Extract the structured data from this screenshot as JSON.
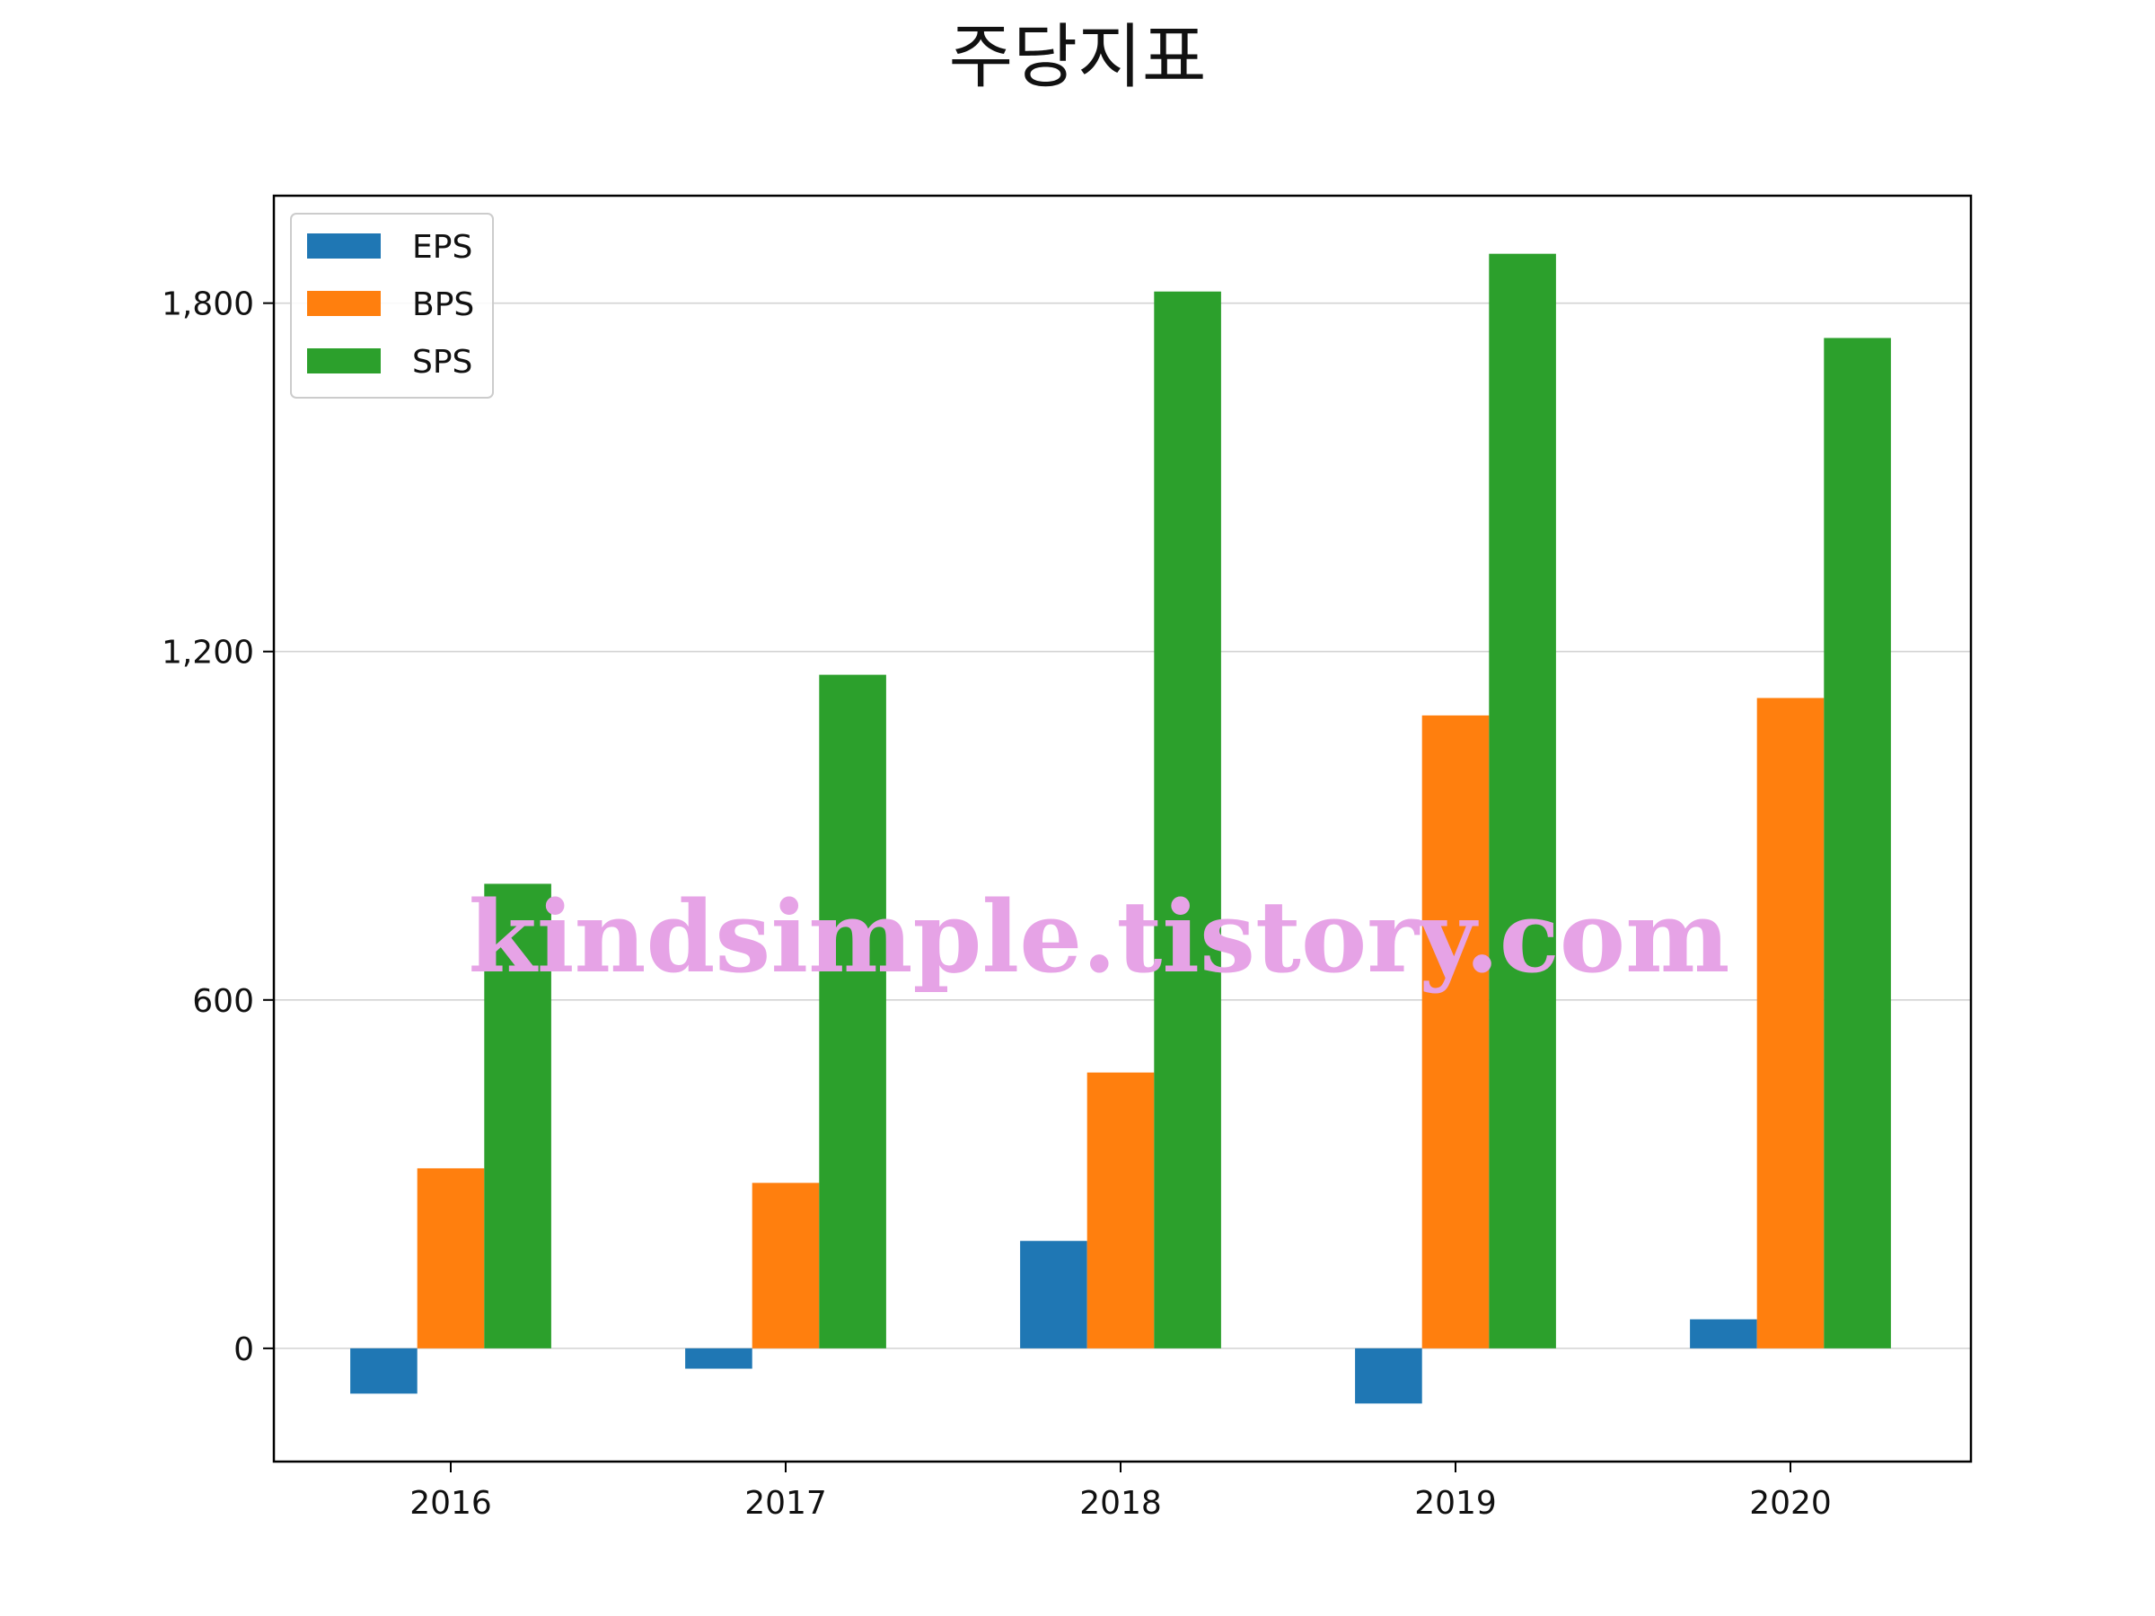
{
  "chart_data": {
    "type": "bar",
    "title": "주당지표",
    "xlabel": "",
    "ylabel": "",
    "categories": [
      "2016",
      "2017",
      "2018",
      "2019",
      "2020"
    ],
    "series": [
      {
        "name": "EPS",
        "values": [
          -78,
          -35,
          185,
          -95,
          50
        ],
        "color": "#1f77b4"
      },
      {
        "name": "BPS",
        "values": [
          310,
          285,
          475,
          1090,
          1120
        ],
        "color": "#ff7f0e"
      },
      {
        "name": "SPS",
        "values": [
          800,
          1160,
          1820,
          1885,
          1740
        ],
        "color": "#2ca02c"
      }
    ],
    "ylim": [
      -195,
      1985
    ],
    "yticks": [
      0,
      600,
      1200,
      1800
    ],
    "ytick_labels": [
      "0",
      "600",
      "1,200",
      "1,800"
    ],
    "grid": true,
    "grid_axis": "y",
    "legend_position": "upper-left",
    "watermark": "kindsimple.tistory.com"
  }
}
